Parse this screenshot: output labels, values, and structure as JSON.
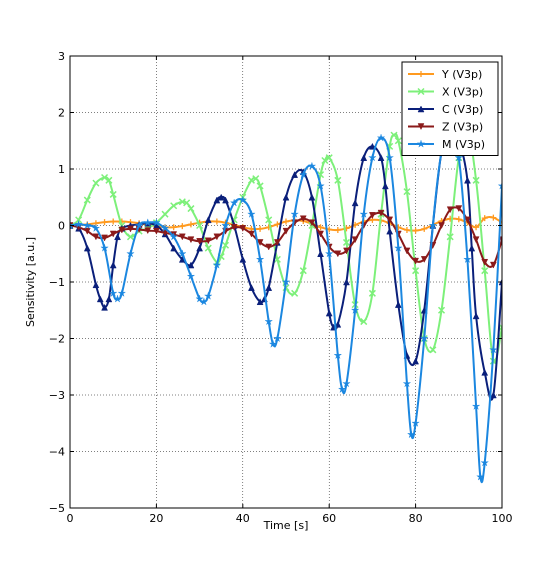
{
  "chart_data": {
    "type": "line",
    "title": "",
    "xlabel": "Time [s]",
    "ylabel": "Sensitivity [a.u.]",
    "xlim": [
      0,
      100
    ],
    "ylim": [
      -5,
      3
    ],
    "xticks": [
      0,
      20,
      40,
      60,
      80,
      100
    ],
    "yticks": [
      -5,
      -4,
      -3,
      -2,
      -1,
      0,
      1,
      2,
      3
    ],
    "grid": true,
    "legend_position": "top-right",
    "series": [
      {
        "name": "Y (V3p)",
        "color": "#ff9a1f",
        "marker": "plus",
        "x": [
          0,
          2,
          4,
          6,
          8,
          10,
          12,
          14,
          16,
          18,
          20,
          22,
          24,
          26,
          28,
          30,
          32,
          34,
          36,
          38,
          40,
          42,
          44,
          46,
          48,
          50,
          52,
          54,
          56,
          58,
          60,
          62,
          64,
          66,
          68,
          70,
          72,
          74,
          76,
          78,
          80,
          82,
          84,
          86,
          88,
          90,
          92,
          94,
          96,
          98,
          100
        ],
        "y": [
          0,
          0.01,
          0.02,
          0.04,
          0.06,
          0.07,
          0.07,
          0.06,
          0.04,
          0.01,
          -0.01,
          -0.03,
          -0.03,
          -0.01,
          0.02,
          0.05,
          0.07,
          0.07,
          0.05,
          0.01,
          -0.03,
          -0.06,
          -0.06,
          -0.03,
          0.02,
          0.07,
          0.09,
          0.08,
          0.03,
          -0.03,
          -0.07,
          -0.08,
          -0.05,
          0.01,
          0.07,
          0.1,
          0.09,
          0.04,
          -0.03,
          -0.08,
          -0.09,
          -0.06,
          0.01,
          0.08,
          0.12,
          0.11,
          0.05,
          -0.03,
          0.13,
          0.14,
          0.05
        ]
      },
      {
        "name": "X (V3p)",
        "color": "#7df07a",
        "marker": "x",
        "x": [
          0,
          2,
          4,
          6,
          8,
          9,
          10,
          12,
          14,
          16,
          18,
          20,
          22,
          24,
          26,
          27,
          28,
          30,
          32,
          34,
          35,
          36,
          38,
          40,
          42,
          43,
          44,
          46,
          48,
          50,
          52,
          54,
          56,
          58,
          59,
          60,
          62,
          64,
          66,
          68,
          70,
          72,
          74,
          75,
          76,
          78,
          80,
          82,
          84,
          86,
          88,
          90,
          92,
          94,
          96,
          98,
          100
        ],
        "y": [
          0,
          0.1,
          0.45,
          0.75,
          0.85,
          0.8,
          0.55,
          0.0,
          -0.2,
          -0.1,
          -0.05,
          0.05,
          0.2,
          0.35,
          0.42,
          0.4,
          0.3,
          0.0,
          -0.4,
          -0.65,
          -0.55,
          -0.35,
          0.1,
          0.5,
          0.8,
          0.83,
          0.7,
          0.1,
          -0.6,
          -1.1,
          -1.2,
          -0.8,
          0.0,
          0.9,
          1.15,
          1.2,
          0.8,
          -0.3,
          -1.4,
          -1.7,
          -1.2,
          0.2,
          1.4,
          1.6,
          1.5,
          0.6,
          -0.8,
          -2.0,
          -2.2,
          -1.5,
          -0.2,
          1.2,
          1.7,
          0.8,
          -0.8,
          -2.4,
          -1.8
        ]
      },
      {
        "name": "C (V3p)",
        "color": "#0a1f7a",
        "marker": "triangle",
        "x": [
          0,
          2,
          4,
          6,
          7,
          8,
          9,
          10,
          11,
          12,
          14,
          16,
          18,
          20,
          22,
          24,
          26,
          28,
          30,
          32,
          34,
          35,
          36,
          38,
          40,
          42,
          44,
          45,
          46,
          48,
          50,
          52,
          54,
          56,
          58,
          60,
          61,
          62,
          64,
          66,
          68,
          70,
          72,
          73,
          74,
          76,
          78,
          80,
          82,
          84,
          86,
          88,
          90,
          92,
          93,
          94,
          96,
          98,
          100
        ],
        "y": [
          0,
          -0.05,
          -0.4,
          -1.05,
          -1.3,
          -1.45,
          -1.3,
          -0.7,
          -0.2,
          -0.05,
          0.0,
          0.02,
          0.04,
          0.0,
          -0.15,
          -0.4,
          -0.6,
          -0.7,
          -0.4,
          0.1,
          0.45,
          0.5,
          0.45,
          0.0,
          -0.6,
          -1.1,
          -1.35,
          -1.3,
          -1.1,
          -0.3,
          0.5,
          0.9,
          0.95,
          0.5,
          -0.5,
          -1.55,
          -1.8,
          -1.75,
          -1.0,
          0.4,
          1.2,
          1.4,
          1.2,
          0.7,
          -0.1,
          -1.4,
          -2.3,
          -2.4,
          -1.5,
          0.0,
          1.3,
          1.6,
          1.5,
          0.8,
          -0.4,
          -1.6,
          -2.6,
          -3.0,
          -1.0
        ]
      },
      {
        "name": "Z (V3p)",
        "color": "#8b1a1a",
        "marker": "triangle-down",
        "x": [
          0,
          2,
          4,
          6,
          8,
          10,
          12,
          14,
          16,
          18,
          20,
          22,
          24,
          26,
          28,
          30,
          32,
          34,
          36,
          38,
          40,
          42,
          44,
          46,
          48,
          50,
          52,
          54,
          56,
          58,
          60,
          62,
          64,
          66,
          68,
          70,
          72,
          74,
          76,
          78,
          80,
          82,
          84,
          86,
          88,
          90,
          92,
          94,
          96,
          98,
          100
        ],
        "y": [
          0,
          -0.03,
          -0.1,
          -0.2,
          -0.22,
          -0.15,
          -0.08,
          -0.06,
          -0.07,
          -0.09,
          -0.1,
          -0.13,
          -0.16,
          -0.2,
          -0.25,
          -0.28,
          -0.27,
          -0.2,
          -0.1,
          -0.03,
          -0.05,
          -0.15,
          -0.3,
          -0.38,
          -0.3,
          -0.1,
          0.05,
          0.12,
          0.05,
          -0.15,
          -0.38,
          -0.5,
          -0.45,
          -0.25,
          0.0,
          0.18,
          0.22,
          0.1,
          -0.15,
          -0.45,
          -0.63,
          -0.6,
          -0.35,
          0.0,
          0.28,
          0.3,
          0.1,
          -0.25,
          -0.65,
          -0.7,
          -0.25
        ]
      },
      {
        "name": "M (V3p)",
        "color": "#1b87e0",
        "marker": "star",
        "x": [
          0,
          2,
          4,
          6,
          8,
          10,
          11,
          12,
          14,
          16,
          18,
          20,
          22,
          24,
          26,
          28,
          30,
          31,
          32,
          34,
          36,
          38,
          40,
          42,
          44,
          46,
          47,
          48,
          50,
          52,
          54,
          56,
          58,
          60,
          62,
          63,
          64,
          66,
          68,
          70,
          72,
          74,
          76,
          78,
          79,
          80,
          82,
          84,
          86,
          88,
          90,
          92,
          94,
          95,
          96,
          98,
          100
        ],
        "y": [
          0,
          0.02,
          0.0,
          -0.05,
          -0.4,
          -1.2,
          -1.3,
          -1.2,
          -0.5,
          0.0,
          0.05,
          0.05,
          -0.05,
          -0.2,
          -0.5,
          -0.9,
          -1.3,
          -1.35,
          -1.25,
          -0.7,
          0.0,
          0.4,
          0.45,
          0.2,
          -0.6,
          -1.7,
          -2.1,
          -2.0,
          -1.0,
          0.2,
          0.9,
          1.05,
          0.7,
          -0.5,
          -2.3,
          -2.9,
          -2.8,
          -1.5,
          0.2,
          1.2,
          1.55,
          1.2,
          -0.4,
          -2.8,
          -3.7,
          -3.5,
          -2.0,
          0.0,
          1.3,
          1.6,
          1.2,
          -0.6,
          -3.2,
          -4.45,
          -4.2,
          -2.2,
          0.7
        ]
      }
    ]
  }
}
